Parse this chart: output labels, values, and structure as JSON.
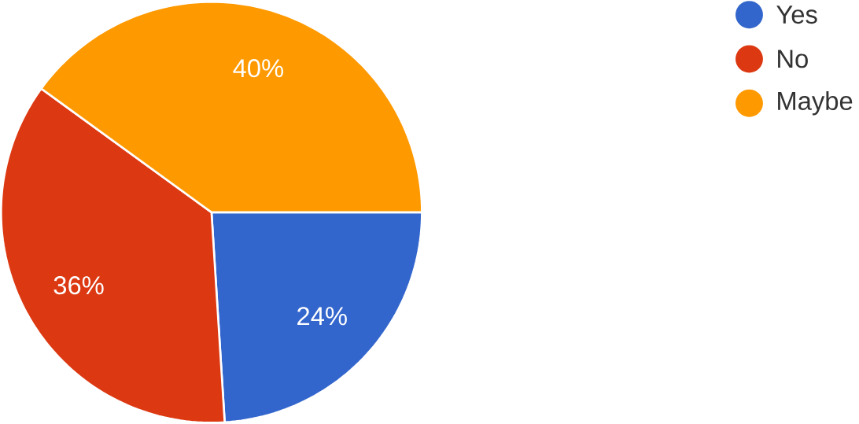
{
  "chart_data": {
    "type": "pie",
    "categories": [
      "Yes",
      "No",
      "Maybe"
    ],
    "values": [
      24,
      36,
      40
    ],
    "value_labels": [
      "24%",
      "36%",
      "40%"
    ],
    "colors": [
      "#3366cc",
      "#dc3912",
      "#ff9900"
    ],
    "legend": "top right"
  }
}
